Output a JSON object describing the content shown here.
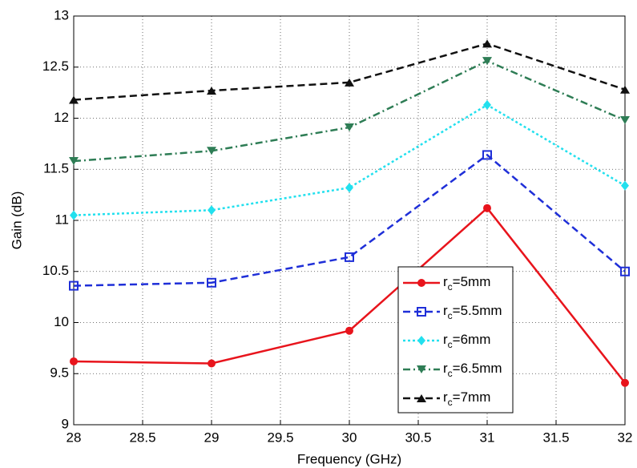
{
  "chart_data": {
    "type": "line",
    "xlabel": "Frequency (GHz)",
    "ylabel": "Gain (dB)",
    "x": [
      28,
      29,
      30,
      31,
      32
    ],
    "xlim": [
      28,
      32
    ],
    "xticks": [
      28,
      28.5,
      29,
      29.5,
      30,
      30.5,
      31,
      31.5,
      32
    ],
    "ylim": [
      9,
      13
    ],
    "yticks": [
      9,
      9.5,
      10,
      10.5,
      11,
      11.5,
      12,
      12.5,
      13
    ],
    "grid": true,
    "legend": "lower right",
    "series": [
      {
        "name": "rc=5mm",
        "color": "#e8141c",
        "marker": "circle",
        "linestyle": "solid",
        "values": [
          9.62,
          9.6,
          9.92,
          11.12,
          9.41
        ]
      },
      {
        "name": "rc=5.5mm",
        "color": "#1f2fd8",
        "marker": "square",
        "linestyle": "dashed",
        "values": [
          10.36,
          10.39,
          10.64,
          11.64,
          10.5
        ]
      },
      {
        "name": "rc=6mm",
        "color": "#22e0ee",
        "marker": "diamond",
        "linestyle": "dotted",
        "values": [
          11.05,
          11.1,
          11.32,
          12.13,
          11.34
        ]
      },
      {
        "name": "rc=6.5mm",
        "color": "#2e7d55",
        "marker": "triangle-down",
        "linestyle": "dashdot",
        "values": [
          11.58,
          11.68,
          11.91,
          12.56,
          11.98
        ]
      },
      {
        "name": "rc=7mm",
        "color": "#111111",
        "marker": "triangle-up",
        "linestyle": "dashed",
        "values": [
          12.18,
          12.27,
          12.35,
          12.73,
          12.28
        ]
      }
    ]
  }
}
